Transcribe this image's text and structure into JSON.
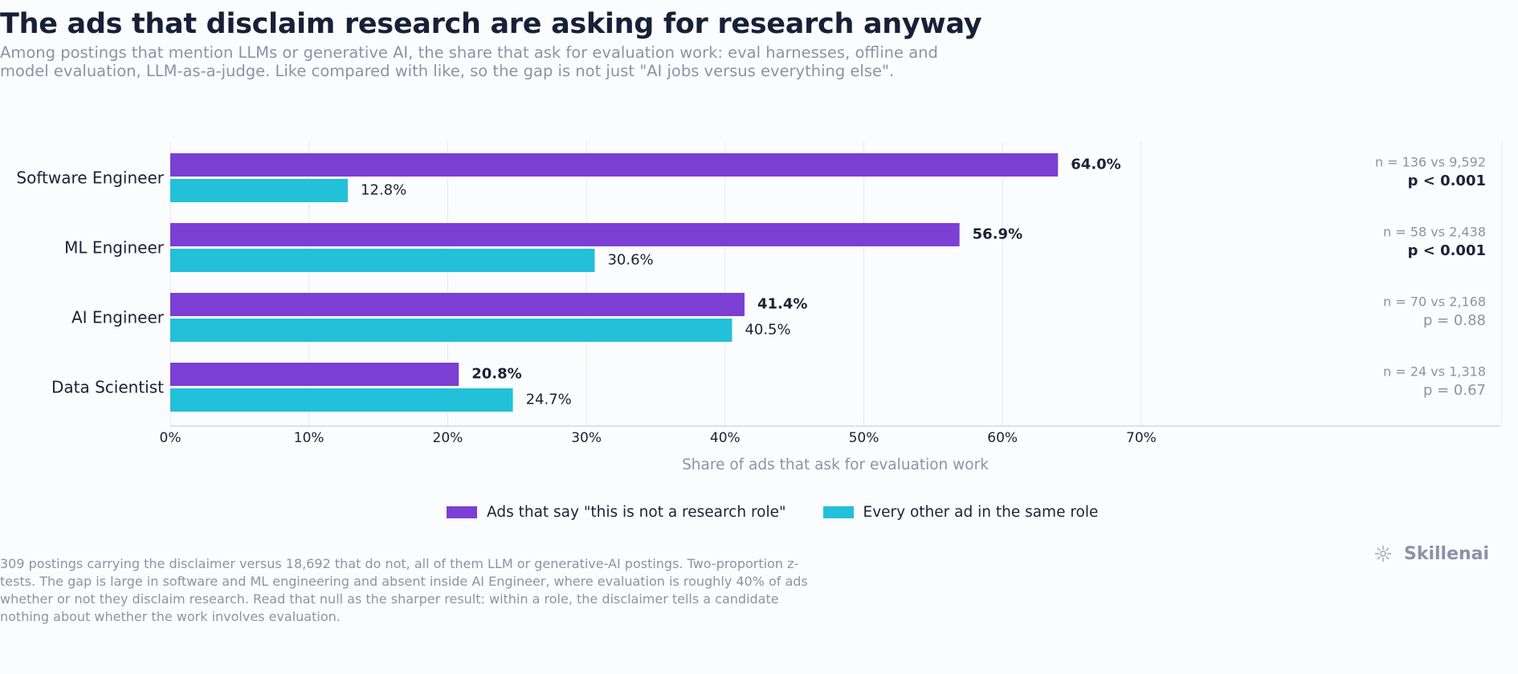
{
  "title": "The ads that disclaim research are asking for research anyway",
  "subtitle": "Among postings that mention LLMs or generative AI, the share that ask for evaluation work: eval harnesses, offline and model evaluation, LLM-as-a-judge. Like compared with like, so the gap is not just \"AI jobs versus everything else\".",
  "footnote": "309 postings carrying the disclaimer versus 18,692 that do not, all of them LLM or generative-AI postings. Two-proportion z-tests. The gap is large in software and ML engineering and absent inside AI Engineer, where evaluation is roughly 40% of ads whether or not they disclaim research. Read that null as the sharper result: within a role, the disclaimer tells a candidate nothing about whether the work involves evaluation.",
  "brand": {
    "name": "Skillenai",
    "icon": "spiral-logo-icon"
  },
  "legend": [
    {
      "label": "Ads that say \"this is not a research role\"",
      "color": "#7b3fd4"
    },
    {
      "label": "Every other ad in the same role",
      "color": "#22c0d9"
    }
  ],
  "chart_data": {
    "type": "bar",
    "orientation": "horizontal",
    "categories": [
      "Software Engineer",
      "ML Engineer",
      "AI Engineer",
      "Data Scientist"
    ],
    "series": [
      {
        "name": "Ads that say \"this is not a research role\"",
        "color": "#7b3fd4",
        "values": [
          64.0,
          56.9,
          41.4,
          20.8
        ],
        "labels": [
          "64.0%",
          "56.9%",
          "41.4%",
          "20.8%"
        ]
      },
      {
        "name": "Every other ad in the same role",
        "color": "#22c0d9",
        "values": [
          12.8,
          30.6,
          40.5,
          24.7
        ],
        "labels": [
          "12.8%",
          "30.6%",
          "40.5%",
          "24.7%"
        ]
      }
    ],
    "xlabel": "Share of ads that ask for evaluation work",
    "xlim": [
      0,
      96
    ],
    "xticks": [
      0,
      10,
      20,
      30,
      40,
      50,
      60,
      70
    ],
    "xtick_labels": [
      "0%",
      "10%",
      "20%",
      "30%",
      "40%",
      "50%",
      "60%",
      "70%"
    ],
    "grid": true,
    "legend_position": "bottom-center",
    "annotations": [
      {
        "n": "n = 136 vs 9,592",
        "p": "p < 0.001",
        "significant": true
      },
      {
        "n": "n = 58 vs 2,438",
        "p": "p < 0.001",
        "significant": true
      },
      {
        "n": "n = 70 vs 2,168",
        "p": "p = 0.88",
        "significant": false
      },
      {
        "n": "n = 24 vs 1,318",
        "p": "p = 0.67",
        "significant": false
      }
    ]
  }
}
